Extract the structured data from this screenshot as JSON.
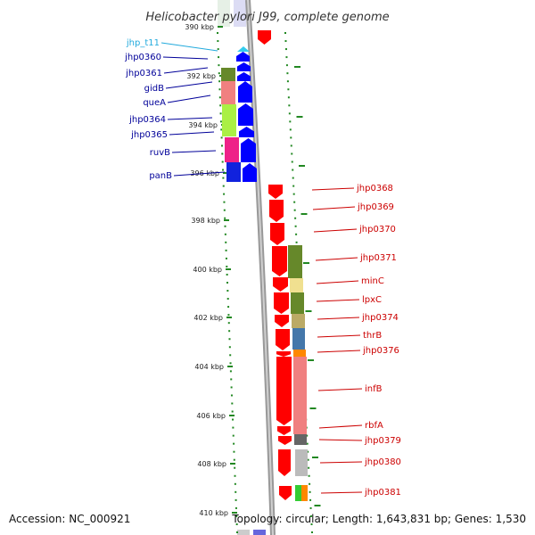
{
  "title": "Helicobacter pylori J99, complete genome",
  "accession": "Accession: NC_000921",
  "topology": "Topology: circular; Length: 1,643,831 bp; Genes: 1,530",
  "colors": {
    "plus": "#0000ff",
    "minus": "#ff0000",
    "trna": "#33ccee",
    "left_label": "#000099",
    "right_label": "#cc0000",
    "trna_label": "#22aadd",
    "tick": "#228822"
  },
  "ticks": [
    "390 kbp",
    "392 kbp",
    "394 kbp",
    "396 kbp",
    "398 kbp",
    "400 kbp",
    "402 kbp",
    "404 kbp",
    "406 kbp",
    "408 kbp",
    "410 kbp"
  ],
  "left_labels": [
    "jhp_t11",
    "jhp0360",
    "jhp0361",
    "gidB",
    "queA",
    "jhp0364",
    "jhp0365",
    "ruvB",
    "panB"
  ],
  "right_labels": [
    "jhp0368",
    "jhp0369",
    "jhp0370",
    "jhp0371",
    "minC",
    "lpxC",
    "jhp0374",
    "thrB",
    "jhp0376",
    "infB",
    "rbfA",
    "jhp0379",
    "jhp0380",
    "jhp0381"
  ]
}
